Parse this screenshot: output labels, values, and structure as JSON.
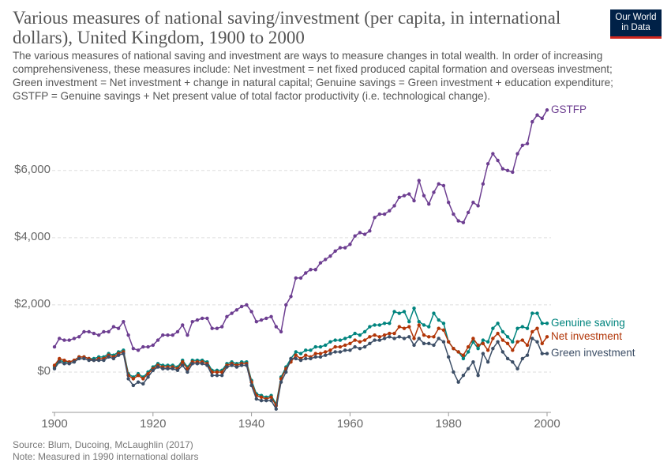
{
  "chart_data": {
    "type": "line",
    "title": "Various measures of national saving/investment (per capita, in international dollars), United Kingdom, 1900 to 2000",
    "subtitle": "The various measures of national saving and investment are ways to measure changes in total wealth. In order of increasing comprehensiveness, these measures include: Net investment = net fixed produced capital formation and overseas investment; Green investment = Net investment + change in natural capital; Genuine savings = Green investment + education expenditure; GSTFP = Genuine savings + Net present value of total factor productivity (i.e. technological change).",
    "logo": [
      "Our World",
      "in Data"
    ],
    "source": "Source: Blum, Ducoing, McLaughlin (2017)",
    "note": "Note: Measured in 1990 international dollars",
    "x": [
      1900,
      1901,
      1902,
      1903,
      1904,
      1905,
      1906,
      1907,
      1908,
      1909,
      1910,
      1911,
      1912,
      1913,
      1914,
      1915,
      1916,
      1917,
      1918,
      1919,
      1920,
      1921,
      1922,
      1923,
      1924,
      1925,
      1926,
      1927,
      1928,
      1929,
      1930,
      1931,
      1932,
      1933,
      1934,
      1935,
      1936,
      1937,
      1938,
      1939,
      1940,
      1941,
      1942,
      1943,
      1944,
      1945,
      1946,
      1947,
      1948,
      1949,
      1950,
      1951,
      1952,
      1953,
      1954,
      1955,
      1956,
      1957,
      1958,
      1959,
      1960,
      1961,
      1962,
      1963,
      1964,
      1965,
      1966,
      1967,
      1968,
      1969,
      1970,
      1971,
      1972,
      1973,
      1974,
      1975,
      1976,
      1977,
      1978,
      1979,
      1980,
      1981,
      1982,
      1983,
      1984,
      1985,
      1986,
      1987,
      1988,
      1989,
      1990,
      1991,
      1992,
      1993,
      1994,
      1995,
      1996,
      1997,
      1998,
      1999,
      2000
    ],
    "series": [
      {
        "name": "GSTFP",
        "color": "#6d3e91",
        "values": [
          750,
          1000,
          950,
          950,
          1000,
          1050,
          1200,
          1200,
          1150,
          1100,
          1200,
          1200,
          1350,
          1300,
          1500,
          1100,
          700,
          650,
          750,
          750,
          800,
          950,
          1100,
          1100,
          1100,
          1200,
          1400,
          1100,
          1500,
          1550,
          1600,
          1600,
          1300,
          1300,
          1350,
          1650,
          1750,
          1850,
          1950,
          2000,
          1800,
          1500,
          1550,
          1600,
          1650,
          1350,
          1200,
          2000,
          2250,
          2800,
          2800,
          2950,
          3050,
          3050,
          3250,
          3350,
          3450,
          3600,
          3700,
          3700,
          3800,
          4050,
          4150,
          4100,
          4200,
          4600,
          4700,
          4700,
          4800,
          4950,
          5200,
          5250,
          5300,
          5100,
          5700,
          5250,
          5000,
          5350,
          5600,
          5550,
          5050,
          4700,
          4500,
          4450,
          4750,
          5050,
          4950,
          5600,
          6200,
          6500,
          6300,
          6050,
          6000,
          5950,
          6500,
          6750,
          6800,
          7450,
          7650,
          7550,
          7800
        ]
      },
      {
        "name": "Genuine saving",
        "color": "#00847e",
        "values": [
          150,
          350,
          300,
          300,
          350,
          450,
          450,
          400,
          400,
          450,
          450,
          550,
          500,
          600,
          650,
          -50,
          -150,
          -50,
          -150,
          0,
          150,
          250,
          200,
          200,
          200,
          150,
          350,
          150,
          350,
          350,
          350,
          300,
          50,
          50,
          50,
          250,
          300,
          250,
          300,
          300,
          -250,
          -650,
          -700,
          -750,
          -700,
          -950,
          -150,
          150,
          400,
          600,
          550,
          650,
          650,
          750,
          750,
          800,
          900,
          950,
          950,
          1000,
          1050,
          1150,
          1100,
          1200,
          1350,
          1400,
          1400,
          1450,
          1450,
          1800,
          1750,
          1800,
          1500,
          1900,
          1500,
          1400,
          1350,
          1750,
          1550,
          1450,
          900,
          700,
          600,
          400,
          600,
          900,
          700,
          950,
          900,
          1300,
          1450,
          1200,
          1050,
          900,
          1300,
          1350,
          1300,
          1750,
          1750,
          1450,
          1450
        ]
      },
      {
        "name": "Net investment",
        "color": "#b13507",
        "values": [
          200,
          400,
          350,
          300,
          350,
          450,
          450,
          400,
          350,
          400,
          400,
          500,
          450,
          550,
          600,
          -100,
          -200,
          -100,
          -200,
          -50,
          100,
          200,
          150,
          150,
          150,
          100,
          300,
          100,
          300,
          300,
          300,
          250,
          0,
          0,
          0,
          200,
          250,
          200,
          250,
          250,
          -300,
          -700,
          -750,
          -800,
          -750,
          -1000,
          -200,
          100,
          300,
          500,
          400,
          500,
          450,
          550,
          550,
          600,
          650,
          750,
          750,
          800,
          850,
          950,
          900,
          950,
          1050,
          1100,
          1050,
          1100,
          1150,
          1150,
          1350,
          1300,
          1350,
          1000,
          1400,
          1100,
          1050,
          1050,
          1300,
          1250,
          900,
          700,
          600,
          500,
          750,
          1000,
          800,
          850,
          650,
          1000,
          1150,
          950,
          850,
          650,
          900,
          950,
          800,
          1200,
          1300,
          850,
          1050
        ]
      },
      {
        "name": "Green investment",
        "color": "#3c4e66",
        "values": [
          100,
          300,
          250,
          250,
          300,
          400,
          400,
          350,
          350,
          350,
          350,
          450,
          400,
          500,
          550,
          -200,
          -400,
          -300,
          -350,
          -150,
          50,
          150,
          100,
          100,
          100,
          50,
          200,
          0,
          250,
          250,
          250,
          200,
          -100,
          -100,
          -100,
          150,
          200,
          150,
          200,
          200,
          -400,
          -800,
          -850,
          -850,
          -850,
          -1100,
          -300,
          0,
          400,
          400,
          350,
          400,
          400,
          450,
          450,
          500,
          550,
          600,
          600,
          650,
          650,
          750,
          700,
          750,
          850,
          950,
          950,
          1000,
          1050,
          1000,
          1050,
          1000,
          1050,
          800,
          1000,
          850,
          850,
          800,
          1000,
          900,
          450,
          0,
          -300,
          -100,
          100,
          300,
          -100,
          550,
          300,
          700,
          900,
          600,
          400,
          300,
          100,
          400,
          500,
          1000,
          900,
          550,
          550
        ]
      }
    ],
    "xlim": [
      1900,
      2000
    ],
    "xticks": [
      1900,
      1920,
      1940,
      1960,
      1980,
      2000
    ],
    "ylim": [
      -1200,
      7900
    ],
    "yticks": [
      {
        "value": 0,
        "label": "$0"
      },
      {
        "value": 2000,
        "label": "$2,000"
      },
      {
        "value": 4000,
        "label": "$4,000"
      },
      {
        "value": 6000,
        "label": "$6,000"
      }
    ],
    "grid": true
  }
}
